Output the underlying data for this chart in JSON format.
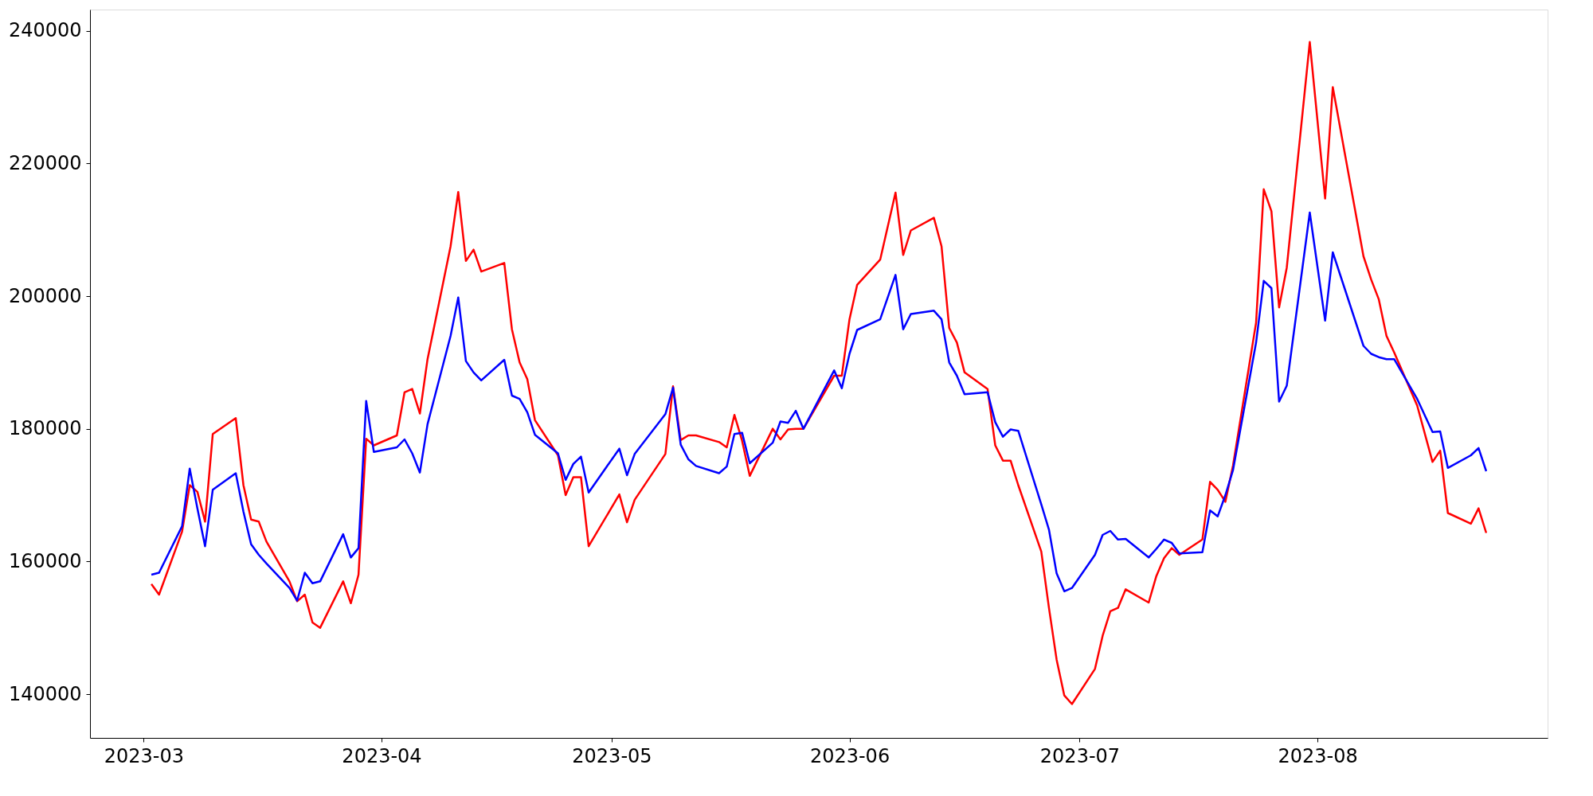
{
  "chart_data": {
    "type": "line",
    "x": [
      "2023-03-02",
      "2023-03-03",
      "2023-03-06",
      "2023-03-07",
      "2023-03-08",
      "2023-03-09",
      "2023-03-10",
      "2023-03-13",
      "2023-03-14",
      "2023-03-15",
      "2023-03-16",
      "2023-03-17",
      "2023-03-20",
      "2023-03-21",
      "2023-03-22",
      "2023-03-23",
      "2023-03-24",
      "2023-03-27",
      "2023-03-28",
      "2023-03-29",
      "2023-03-30",
      "2023-03-31",
      "2023-04-03",
      "2023-04-04",
      "2023-04-05",
      "2023-04-06",
      "2023-04-07",
      "2023-04-10",
      "2023-04-11",
      "2023-04-12",
      "2023-04-13",
      "2023-04-14",
      "2023-04-17",
      "2023-04-18",
      "2023-04-19",
      "2023-04-20",
      "2023-04-21",
      "2023-04-24",
      "2023-04-25",
      "2023-04-26",
      "2023-04-27",
      "2023-04-28",
      "2023-05-02",
      "2023-05-03",
      "2023-05-04",
      "2023-05-08",
      "2023-05-09",
      "2023-05-10",
      "2023-05-11",
      "2023-05-12",
      "2023-05-15",
      "2023-05-16",
      "2023-05-17",
      "2023-05-18",
      "2023-05-19",
      "2023-05-22",
      "2023-05-23",
      "2023-05-24",
      "2023-05-25",
      "2023-05-26",
      "2023-05-30",
      "2023-05-31",
      "2023-06-01",
      "2023-06-02",
      "2023-06-05",
      "2023-06-07",
      "2023-06-08",
      "2023-06-09",
      "2023-06-12",
      "2023-06-13",
      "2023-06-14",
      "2023-06-15",
      "2023-06-16",
      "2023-06-19",
      "2023-06-20",
      "2023-06-21",
      "2023-06-22",
      "2023-06-23",
      "2023-06-26",
      "2023-06-27",
      "2023-06-28",
      "2023-06-29",
      "2023-06-30",
      "2023-07-03",
      "2023-07-04",
      "2023-07-05",
      "2023-07-06",
      "2023-07-07",
      "2023-07-10",
      "2023-07-11",
      "2023-07-12",
      "2023-07-13",
      "2023-07-14",
      "2023-07-17",
      "2023-07-18",
      "2023-07-19",
      "2023-07-20",
      "2023-07-21",
      "2023-07-24",
      "2023-07-25",
      "2023-07-26",
      "2023-07-27",
      "2023-07-28",
      "2023-07-31",
      "2023-08-02",
      "2023-08-03",
      "2023-08-07",
      "2023-08-08",
      "2023-08-09",
      "2023-08-10",
      "2023-08-11",
      "2023-08-14",
      "2023-08-16",
      "2023-08-17",
      "2023-08-18",
      "2023-08-21",
      "2023-08-22",
      "2023-08-23"
    ],
    "series": [
      {
        "color": "#ff0000",
        "values": [
          156600,
          155000,
          164500,
          171500,
          170500,
          166000,
          179200,
          181600,
          171500,
          166300,
          166000,
          163000,
          157000,
          154000,
          155000,
          150800,
          150000,
          157000,
          153700,
          158000,
          178500,
          177500,
          179000,
          185500,
          186000,
          182300,
          190500,
          207500,
          215700,
          205300,
          207000,
          203700,
          205000,
          195000,
          190000,
          187500,
          181300,
          176000,
          170000,
          172700,
          172700,
          162300,
          170100,
          165900,
          169300,
          176200,
          186400,
          178300,
          179000,
          179000,
          178000,
          177200,
          182100,
          178200,
          172900,
          180000,
          178400,
          179900,
          180000,
          180000,
          188000,
          188000,
          196500,
          201700,
          205500,
          215600,
          206200,
          209900,
          211800,
          207500,
          195200,
          193000,
          188500,
          186000,
          177500,
          175200,
          175200,
          171500,
          161500,
          153000,
          145200,
          139800,
          138500,
          143800,
          148800,
          152500,
          153000,
          155800,
          153800,
          157800,
          160500,
          162000,
          161000,
          163300,
          172000,
          170800,
          169000,
          174500,
          196000,
          216100,
          212800,
          198300,
          204300,
          238300,
          214700,
          231500,
          206000,
          202500,
          199500,
          194000,
          191500,
          183500,
          175000,
          176700,
          167300,
          165700,
          168000,
          164300
        ]
      },
      {
        "color": "#0000ff",
        "values": [
          158000,
          158300,
          165300,
          174000,
          168000,
          162300,
          170800,
          173300,
          167500,
          162600,
          161000,
          159700,
          156000,
          154100,
          158300,
          156700,
          157000,
          164100,
          160600,
          162000,
          184200,
          176500,
          177200,
          178400,
          176300,
          173400,
          180700,
          194000,
          199800,
          190200,
          188500,
          187300,
          190400,
          185000,
          184500,
          182500,
          179100,
          176300,
          172300,
          174700,
          175800,
          170400,
          177000,
          173000,
          176200,
          182200,
          186200,
          177600,
          175400,
          174400,
          173300,
          174300,
          179200,
          179400,
          174800,
          177900,
          181100,
          180900,
          182700,
          180000,
          188800,
          186100,
          191300,
          194900,
          196500,
          203200,
          195000,
          197300,
          197800,
          196500,
          190000,
          188000,
          185200,
          185500,
          181000,
          178800,
          179900,
          179700,
          168600,
          164800,
          158200,
          155500,
          156000,
          161000,
          164000,
          164600,
          163300,
          163400,
          160600,
          161900,
          163300,
          162800,
          161200,
          161400,
          167700,
          166800,
          170000,
          173800,
          193000,
          202300,
          201200,
          184100,
          186500,
          212600,
          196300,
          206600,
          192500,
          191300,
          190800,
          190500,
          190500,
          184500,
          179500,
          179600,
          174100,
          176000,
          177100,
          173600
        ]
      }
    ],
    "xlim": [
      "2023-02-22",
      "2023-08-31"
    ],
    "xticks": [
      "2023-03",
      "2023-04",
      "2023-05",
      "2023-06",
      "2023-07",
      "2023-08"
    ],
    "ylim": [
      133400,
      243200
    ],
    "yticks": [
      140000,
      160000,
      180000,
      200000,
      220000,
      240000
    ],
    "grid": false,
    "marker": "none",
    "line_style": "solid"
  }
}
